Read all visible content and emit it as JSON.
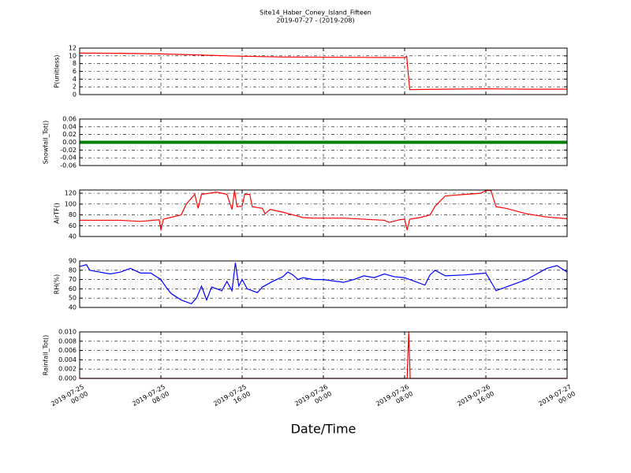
{
  "chart_data": [
    {
      "type": "line",
      "title": "Site14_Haber_Coney_Island_Fifteen",
      "subtitle": "2019-07-27 - (2019-208)",
      "ylabel": "P(unitless)",
      "color": "#ff0000",
      "ylim": [
        0,
        12
      ],
      "yticks": [
        0,
        2,
        4,
        6,
        8,
        10,
        12
      ],
      "grid": true,
      "x": [
        "2019-07-25 00:00",
        "2019-07-25 04:00",
        "2019-07-25 08:00",
        "2019-07-25 12:00",
        "2019-07-25 16:00",
        "2019-07-25 20:00",
        "2019-07-26 00:00",
        "2019-07-26 04:00",
        "2019-07-26 08:00",
        "2019-07-26 08:12",
        "2019-07-26 08:30",
        "2019-07-26 12:00",
        "2019-07-26 16:00",
        "2019-07-26 20:00",
        "2019-07-27 00:00"
      ],
      "values": [
        10.7,
        10.65,
        10.5,
        10.2,
        9.9,
        9.7,
        9.65,
        9.6,
        9.55,
        9.9,
        1.3,
        1.4,
        1.5,
        1.4,
        1.4
      ]
    },
    {
      "type": "line",
      "ylabel": "Snowfall_Tot()",
      "color": "#008000",
      "ylim": [
        -0.06,
        0.06
      ],
      "yticks": [
        {
          "value": -0.06,
          "label": "-0.06"
        },
        {
          "value": -0.04,
          "label": "-0.04"
        },
        {
          "value": -0.02,
          "label": "-0.02"
        },
        {
          "value": 0,
          "label": "0.00"
        },
        {
          "value": 0.02,
          "label": "0.02"
        },
        {
          "value": 0.04,
          "label": "0.04"
        },
        {
          "value": 0.06,
          "label": "0.06"
        }
      ],
      "grid": true,
      "x": [
        "2019-07-25 00:00",
        "2019-07-27 00:00"
      ],
      "values": [
        0,
        0
      ]
    },
    {
      "type": "line",
      "ylabel": "AirTF()",
      "color": "#ff0000",
      "ylim": [
        40,
        126
      ],
      "yticks": [
        40,
        60,
        80,
        100,
        120
      ],
      "grid": true,
      "x": [
        "2019-07-25 00:00",
        "2019-07-25 04:00",
        "2019-07-25 06:00",
        "2019-07-25 07:50",
        "2019-07-25 08:00",
        "2019-07-25 08:15",
        "2019-07-25 10:00",
        "2019-07-25 10:30",
        "2019-07-25 11:20",
        "2019-07-25 11:40",
        "2019-07-25 12:00",
        "2019-07-25 13:30",
        "2019-07-25 14:30",
        "2019-07-25 15:00",
        "2019-07-25 15:15",
        "2019-07-25 15:30",
        "2019-07-25 16:00",
        "2019-07-25 16:15",
        "2019-07-25 16:45",
        "2019-07-25 17:00",
        "2019-07-25 18:00",
        "2019-07-25 18:15",
        "2019-07-25 18:45",
        "2019-07-25 20:00",
        "2019-07-25 21:00",
        "2019-07-25 22:00",
        "2019-07-25 23:00",
        "2019-07-26 02:00",
        "2019-07-26 06:00",
        "2019-07-26 06:30",
        "2019-07-26 07:30",
        "2019-07-26 08:00",
        "2019-07-26 08:15",
        "2019-07-26 08:30",
        "2019-07-26 09:30",
        "2019-07-26 10:30",
        "2019-07-26 11:00",
        "2019-07-26 12:00",
        "2019-07-26 14:00",
        "2019-07-26 15:30",
        "2019-07-26 16:00",
        "2019-07-26 16:30",
        "2019-07-26 17:00",
        "2019-07-26 18:00",
        "2019-07-26 20:00",
        "2019-07-26 22:00",
        "2019-07-27 00:00"
      ],
      "values": [
        70,
        70,
        68,
        71,
        52,
        72,
        80,
        100,
        118,
        92,
        118,
        122,
        118,
        90,
        125,
        95,
        96,
        118,
        118,
        95,
        92,
        82,
        90,
        85,
        80,
        75,
        74,
        74,
        70,
        66,
        71,
        72,
        52,
        72,
        75,
        80,
        96,
        115,
        118,
        120,
        125,
        125,
        95,
        92,
        82,
        76,
        73
      ]
    },
    {
      "type": "line",
      "ylabel": "RH(%)",
      "color": "#0000ff",
      "ylim": [
        40,
        90
      ],
      "yticks": [
        40,
        50,
        60,
        70,
        80,
        90
      ],
      "grid": true,
      "x": [
        "2019-07-25 00:00",
        "2019-07-25 00:40",
        "2019-07-25 01:00",
        "2019-07-25 02:00",
        "2019-07-25 03:00",
        "2019-07-25 04:00",
        "2019-07-25 05:00",
        "2019-07-25 06:00",
        "2019-07-25 07:00",
        "2019-07-25 08:00",
        "2019-07-25 08:30",
        "2019-07-25 09:00",
        "2019-07-25 10:00",
        "2019-07-25 11:00",
        "2019-07-25 11:30",
        "2019-07-25 12:00",
        "2019-07-25 12:30",
        "2019-07-25 13:00",
        "2019-07-25 14:00",
        "2019-07-25 14:30",
        "2019-07-25 15:00",
        "2019-07-25 15:20",
        "2019-07-25 15:40",
        "2019-07-25 16:00",
        "2019-07-25 16:30",
        "2019-07-25 17:30",
        "2019-07-25 18:00",
        "2019-07-25 19:00",
        "2019-07-25 20:00",
        "2019-07-25 20:30",
        "2019-07-25 21:00",
        "2019-07-25 21:30",
        "2019-07-25 22:00",
        "2019-07-25 23:00",
        "2019-07-26 00:00",
        "2019-07-26 02:00",
        "2019-07-26 03:00",
        "2019-07-26 04:00",
        "2019-07-26 05:00",
        "2019-07-26 06:00",
        "2019-07-26 07:00",
        "2019-07-26 08:00",
        "2019-07-26 09:00",
        "2019-07-26 10:00",
        "2019-07-26 10:30",
        "2019-07-26 11:00",
        "2019-07-26 12:00",
        "2019-07-26 14:00",
        "2019-07-26 15:00",
        "2019-07-26 16:00",
        "2019-07-26 16:45",
        "2019-07-26 17:00",
        "2019-07-26 18:00",
        "2019-07-26 20:00",
        "2019-07-26 22:00",
        "2019-07-26 23:00",
        "2019-07-27 00:00"
      ],
      "values": [
        84,
        86,
        80,
        78,
        76,
        78,
        82,
        77,
        77,
        70,
        62,
        55,
        48,
        44,
        50,
        63,
        48,
        62,
        58,
        68,
        58,
        88,
        63,
        70,
        60,
        56,
        62,
        68,
        73,
        78,
        75,
        70,
        72,
        70,
        70,
        67,
        70,
        74,
        72,
        76,
        73,
        72,
        68,
        64,
        75,
        80,
        74,
        75,
        76,
        77,
        63,
        58,
        62,
        70,
        82,
        85,
        78
      ]
    },
    {
      "type": "line",
      "ylabel": "Rainfall_Tot()",
      "xlabel": "Date/Time",
      "color": "#ff0000",
      "ylim": [
        0,
        0.01
      ],
      "yticks": [
        {
          "value": 0,
          "label": "0.000"
        },
        {
          "value": 0.002,
          "label": "0.002"
        },
        {
          "value": 0.004,
          "label": "0.004"
        },
        {
          "value": 0.006,
          "label": "0.006"
        },
        {
          "value": 0.008,
          "label": "0.008"
        },
        {
          "value": 0.01,
          "label": "0.010"
        }
      ],
      "grid": true,
      "xlim": [
        "2019-07-25 00:00",
        "2019-07-27 00:00"
      ],
      "xticks": [
        {
          "value": "2019-07-25 00:00",
          "label": "2019-07-25\n00:00"
        },
        {
          "value": "2019-07-25 08:00",
          "label": "2019-07-25\n08:00"
        },
        {
          "value": "2019-07-25 16:00",
          "label": "2019-07-25\n16:00"
        },
        {
          "value": "2019-07-26 00:00",
          "label": "2019-07-26\n00:00"
        },
        {
          "value": "2019-07-26 08:00",
          "label": "2019-07-26\n08:00"
        },
        {
          "value": "2019-07-26 16:00",
          "label": "2019-07-26\n16:00"
        },
        {
          "value": "2019-07-27 00:00",
          "label": "2019-07-27\n00:00"
        }
      ],
      "x": [
        "2019-07-25 00:00",
        "2019-07-26 08:15",
        "2019-07-26 08:24",
        "2019-07-26 08:33",
        "2019-07-27 00:00"
      ],
      "values": [
        0,
        0,
        0.01,
        0,
        0
      ]
    }
  ]
}
